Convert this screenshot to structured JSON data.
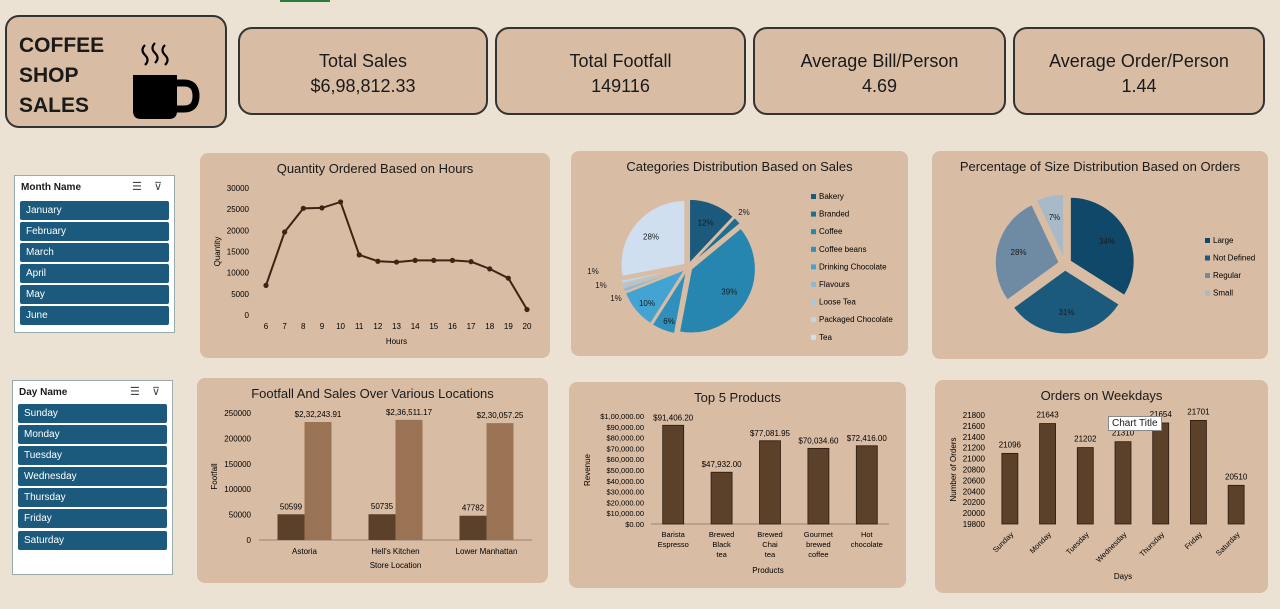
{
  "header": {
    "title": "COFFEE\nSHOP\nSALES",
    "icon": "coffee-cup-icon"
  },
  "kpis": [
    {
      "label": "Total Sales",
      "value": "$6,98,812.33"
    },
    {
      "label": "Total Footfall",
      "value": "149116"
    },
    {
      "label": "Average Bill/Person",
      "value": "4.69"
    },
    {
      "label": "Average Order/Person",
      "value": "1.44"
    }
  ],
  "month_slicer": {
    "header": "Month Name",
    "items": [
      "January",
      "February",
      "March",
      "April",
      "May",
      "June"
    ]
  },
  "day_slicer": {
    "header": "Day Name",
    "items": [
      "Sunday",
      "Monday",
      "Tuesday",
      "Wednesday",
      "Thursday",
      "Friday",
      "Saturday"
    ]
  },
  "tooltip": "Chart Title",
  "colors": {
    "panel": "#d8bca4",
    "background": "#ece2d3",
    "slicer_item": "#1b5a7c",
    "bar_dark": "#5c412a",
    "bar_light": "#9a7354",
    "line": "#3d2413"
  },
  "chart_data": [
    {
      "id": "hours",
      "type": "line",
      "title": "Quantity Ordered Based on Hours",
      "xlabel": "Hours",
      "ylabel": "Quantity",
      "ylim": [
        0,
        30000
      ],
      "yticks": [
        0,
        5000,
        10000,
        15000,
        20000,
        25000,
        30000
      ],
      "x": [
        6,
        7,
        8,
        9,
        10,
        11,
        12,
        13,
        14,
        15,
        16,
        17,
        18,
        19,
        20
      ],
      "values": [
        7000,
        19600,
        25200,
        25300,
        26700,
        14200,
        12700,
        12500,
        12900,
        12900,
        12900,
        12600,
        10900,
        8700,
        1300
      ]
    },
    {
      "id": "categories",
      "type": "pie",
      "title": "Categories Distribution Based on Sales",
      "labels": [
        "Bakery",
        "Branded",
        "Coffee",
        "Coffee beans",
        "Drinking Chocolate",
        "Flavours",
        "Loose Tea",
        "Packaged Chocolate",
        "Tea"
      ],
      "values": [
        12,
        2,
        39,
        6,
        10,
        1,
        1,
        1,
        28
      ],
      "value_labels": [
        "12%",
        "2%",
        "39%",
        "6%",
        "10%",
        "1%",
        "1%",
        "1%",
        "28%"
      ],
      "colors": [
        "#1b5a7c",
        "#1f6d93",
        "#2786b0",
        "#2f8fbd",
        "#43a4d3",
        "#8bbad8",
        "#a5c9e2",
        "#bcd6ea",
        "#cfdff0"
      ]
    },
    {
      "id": "size",
      "type": "pie",
      "title": "Percentage of Size Distribution Based on Orders",
      "labels": [
        "Large",
        "Not Defined",
        "Regular",
        "Small"
      ],
      "values": [
        34,
        31,
        28,
        7
      ],
      "value_labels": [
        "34%",
        "31%",
        "28%",
        "7%"
      ],
      "colors": [
        "#0f4868",
        "#1b5a7c",
        "#6f8aa3",
        "#a8b9c8"
      ]
    },
    {
      "id": "locations",
      "type": "bar",
      "title": "Footfall And Sales Over Various Locations",
      "xlabel": "Store Location",
      "ylabel": "Footfall",
      "ylim": [
        0,
        250000
      ],
      "yticks": [
        0,
        50000,
        100000,
        150000,
        200000,
        250000
      ],
      "categories": [
        "Astoria",
        "Hell's Kitchen",
        "Lower Manhattan"
      ],
      "series": [
        {
          "values": [
            50599,
            50735,
            47782
          ],
          "labels": [
            "50599",
            "50735",
            "47782"
          ]
        },
        {
          "values": [
            232243.91,
            236511.17,
            230057.25
          ],
          "labels": [
            "$2,32,243.91",
            "$2,36,511.17",
            "$2,30,057.25"
          ]
        }
      ]
    },
    {
      "id": "products",
      "type": "bar",
      "title": "Top 5 Products",
      "xlabel": "Products",
      "ylabel": "Revenue",
      "ylim": [
        0,
        100000
      ],
      "yticks": [
        "$0.00",
        "$10,000.00",
        "$20,000.00",
        "$30,000.00",
        "$40,000.00",
        "$50,000.00",
        "$60,000.00",
        "$70,000.00",
        "$80,000.00",
        "$90,000.00",
        "$1,00,000.00"
      ],
      "categories": [
        "Barista Espresso",
        "Brewed Black tea",
        "Brewed Chai tea",
        "Gourmet brewed coffee",
        "Hot chocolate"
      ],
      "values": [
        91406.2,
        47932.0,
        77081.95,
        70034.6,
        72416.0
      ],
      "labels": [
        "$91,406.20",
        "$47,932.00",
        "$77,081.95",
        "$70,034.60",
        "$72,416.00"
      ]
    },
    {
      "id": "weekdays",
      "type": "bar",
      "title": "Orders on Weekdays",
      "xlabel": "Days",
      "ylabel": "Number of Orders",
      "ylim": [
        19800,
        21800
      ],
      "yticks": [
        19800,
        20000,
        20200,
        20400,
        20600,
        20800,
        21000,
        21200,
        21400,
        21600,
        21800
      ],
      "categories": [
        "Sunday",
        "Monday",
        "Tuesday",
        "Wednesday",
        "Thursday",
        "Friday",
        "Saturday"
      ],
      "values": [
        21096,
        21643,
        21202,
        21310,
        21654,
        21701,
        20510
      ],
      "labels": [
        "21096",
        "21643",
        "21202",
        "21310",
        "21654",
        "21701",
        "20510"
      ]
    }
  ]
}
